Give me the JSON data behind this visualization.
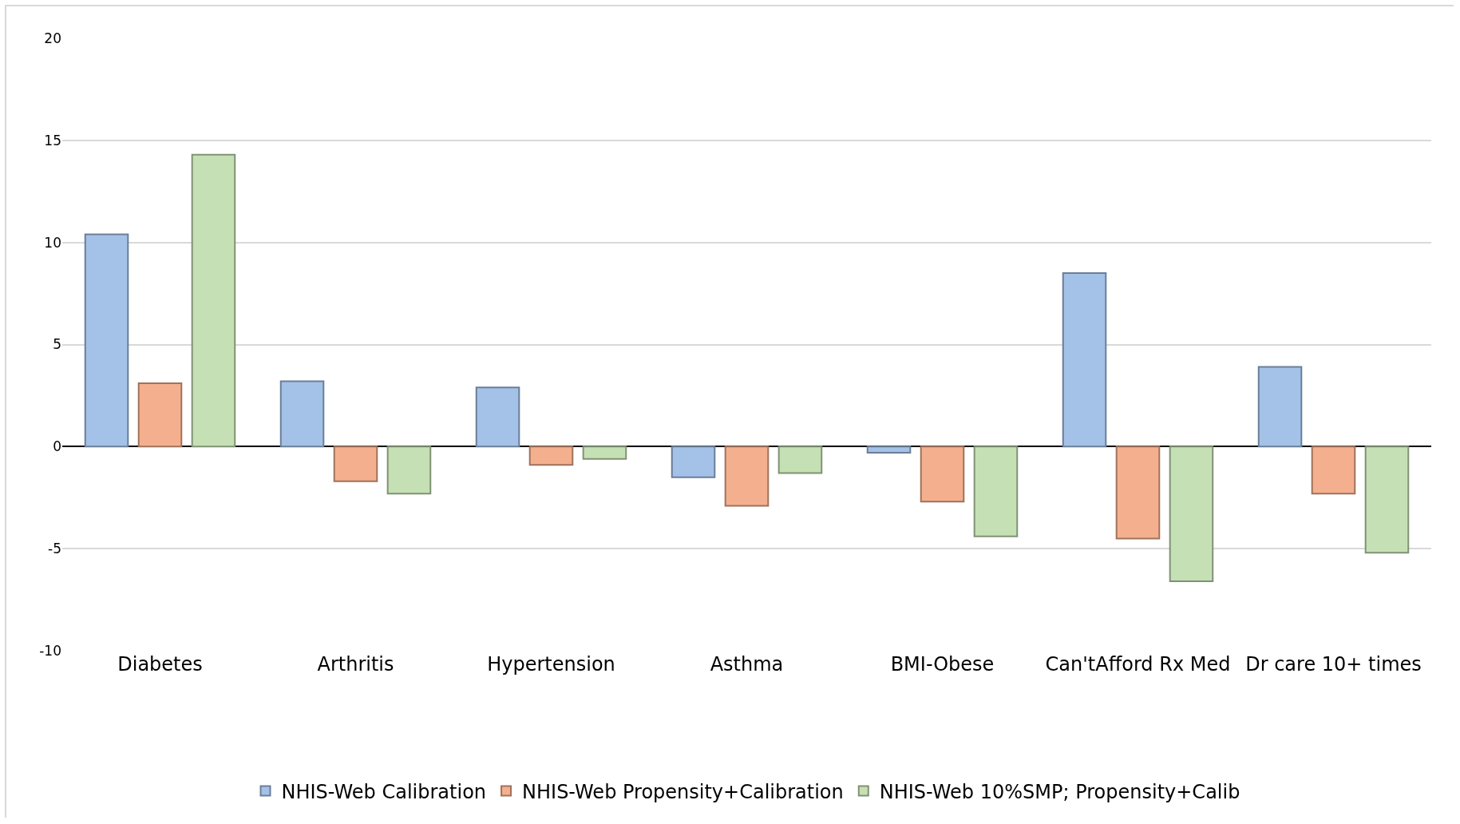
{
  "chart_data": {
    "type": "bar",
    "categories": [
      "Diabetes",
      "Arthritis",
      "Hypertension",
      "Asthma",
      "BMI-Obese",
      "Can'tAfford Rx Med",
      "Dr care 10+ times"
    ],
    "series": [
      {
        "name": "NHIS-Web Calibration",
        "color": "#a4c2e8",
        "values": [
          10.4,
          3.2,
          2.9,
          -1.5,
          -0.3,
          8.5,
          3.9
        ]
      },
      {
        "name": "NHIS-Web Propensity+Calibration",
        "color": "#f4b08e",
        "values": [
          3.1,
          -1.7,
          -0.9,
          -2.9,
          -2.7,
          -4.5,
          -2.3
        ]
      },
      {
        "name": "NHIS-Web 10%SMP; Propensity+Calib",
        "color": "#c5e0b4",
        "values": [
          14.3,
          -2.3,
          -0.6,
          -1.3,
          -4.4,
          -6.6,
          -5.2
        ]
      }
    ],
    "ylim": [
      -10,
      20
    ],
    "yticks": [
      -10,
      -5,
      0,
      5,
      10,
      15,
      20
    ],
    "grid": "y",
    "legend": "bottom"
  }
}
